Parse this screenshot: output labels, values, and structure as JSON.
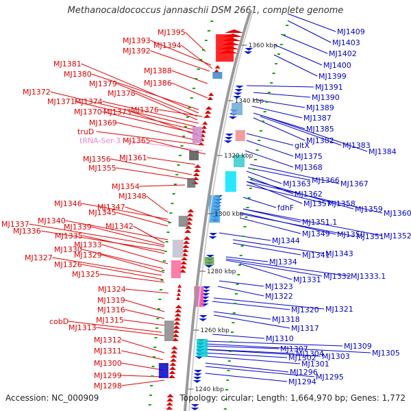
{
  "title": "Methanocaldococcus jannaschii DSM 2661, complete genome",
  "accession": "Accession: NC_000909",
  "summary": "Topology: circular; Length: 1,664,970 bp; Genes: 1,772",
  "colors": {
    "left_labels": "#e00000",
    "right_labels": "#0000cc",
    "trna_label": "#ee88cc",
    "backbone": "#999999",
    "tick_marks": "#00aa00"
  },
  "ruler": [
    "1360 kbp",
    "1340 kbp",
    "1320 kbp",
    "1300 kbp",
    "1280 kbp",
    "1260 kbp",
    "1240 kbp"
  ],
  "left_labels": [
    "MJ1395",
    "MJ1393",
    "MJ1394",
    "MJ1392",
    "MJ1381",
    "MJ1388",
    "MJ1380",
    "MJ1386",
    "MJ1379",
    "MJ1378",
    "MJ1372",
    "MJ1371",
    "MJ1374",
    "MJ1370",
    "MJ1373",
    "MJ1376",
    "MJ1369",
    "truD",
    "tRNA-Ser-3",
    "MJ1365",
    "MJ1361",
    "MJ1356",
    "MJ1355",
    "MJ1354",
    "MJ1348",
    "MJ1346",
    "MJ1347",
    "MJ1345",
    "MJ1337",
    "MJ1340",
    "MJ1339",
    "MJ1342",
    "MJ1336",
    "MJ1335",
    "MJ1333",
    "MJ1330",
    "MJ1329",
    "MJ1327",
    "MJ1326",
    "MJ1325",
    "MJ1324",
    "MJ1319",
    "MJ1316",
    "MJ1315",
    "cobD",
    "MJ1313",
    "MJ1312",
    "MJ1311",
    "MJ1300",
    "MJ1299",
    "MJ1298"
  ],
  "right_labels": [
    "MJ1409",
    "MJ1403",
    "MJ1402",
    "MJ1400",
    "MJ1399",
    "MJ1391",
    "MJ1390",
    "MJ1389",
    "MJ1387",
    "MJ1385",
    "MJ1382",
    "MJ1383",
    "MJ1384",
    "gltX",
    "MJ1375",
    "MJ1368",
    "MJ1366",
    "MJ1363",
    "MJ1367",
    "MJ1362",
    "MJ1357",
    "MJ1358",
    "MJ1359",
    "fdhF",
    "MJ1360",
    "MJ1351.1",
    "MJ1349",
    "MJ1350",
    "MJ1351",
    "MJ1352",
    "MJ1344",
    "MJ1341",
    "MJ1343",
    "MJ1334",
    "MJ1331",
    "MJ1332",
    "MJ1333.1",
    "MJ1323",
    "MJ1322",
    "MJ1320",
    "MJ1321",
    "MJ1318",
    "MJ1317",
    "MJ1310",
    "MJ1307",
    "MJ1309",
    "MJ1304",
    "MJ1305",
    "MJ1302",
    "MJ1303",
    "MJ1301",
    "MJ1296",
    "MJ1295",
    "MJ1294"
  ]
}
